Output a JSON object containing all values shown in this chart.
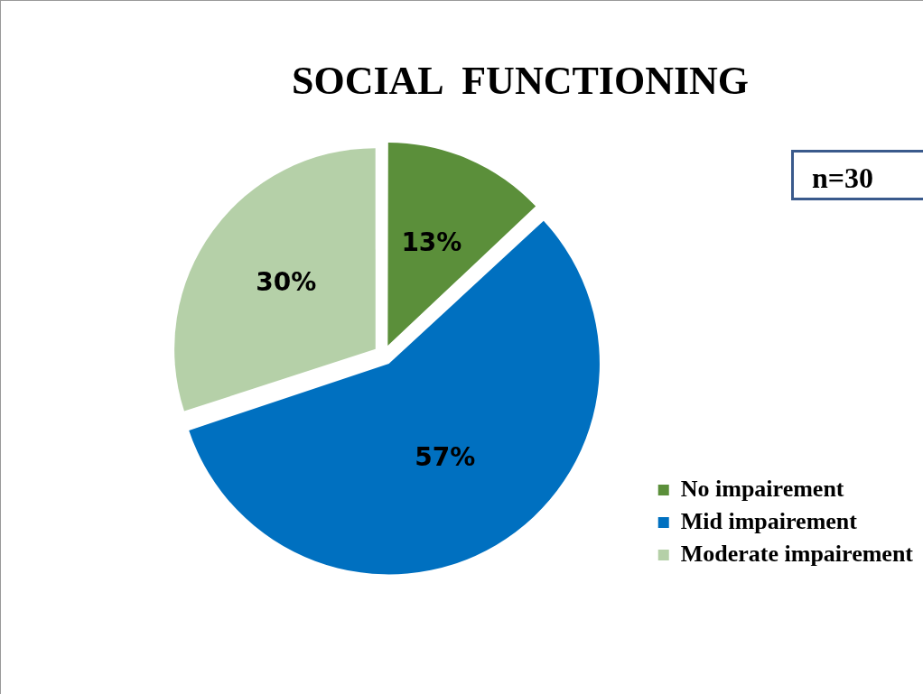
{
  "chart_data": {
    "type": "pie",
    "title": "SOCIAL  FUNCTIONING",
    "categories": [
      "No impairement",
      "Mid impairement",
      "Moderate impairement"
    ],
    "values": [
      13,
      57,
      30
    ],
    "colors": [
      "#5b8f3a",
      "#0070c0",
      "#b5d0a8"
    ],
    "value_labels": [
      "13%",
      "57%",
      "30%"
    ],
    "legend": "bottom right",
    "annotations": [
      "n=30"
    ]
  }
}
